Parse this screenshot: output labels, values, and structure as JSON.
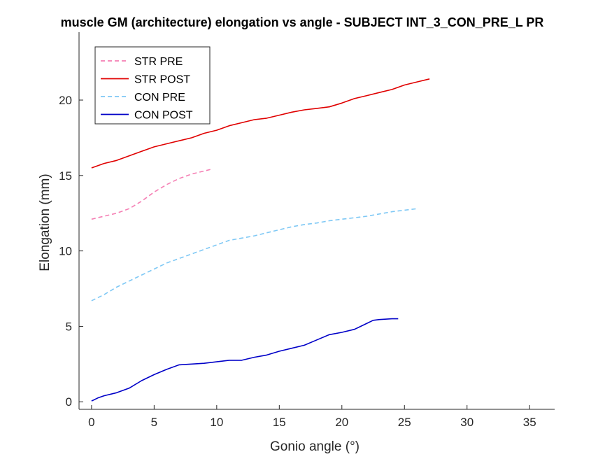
{
  "chart_data": {
    "type": "line",
    "title": "muscle GM (architecture) elongation vs angle - SUBJECT INT_3_CON_PRE_L PR",
    "xlabel": "Gonio angle (°)",
    "ylabel": "Elongation (mm)",
    "xlim": [
      -1,
      37
    ],
    "ylim": [
      -0.5,
      24.5
    ],
    "xticks": [
      0,
      5,
      10,
      15,
      20,
      25,
      30,
      35
    ],
    "yticks": [
      0,
      5,
      10,
      15,
      20
    ],
    "grid": false,
    "legend_position": "top-left",
    "series": [
      {
        "name": "STR PRE",
        "color": "#f57fb4",
        "style": "dashed",
        "x": [
          0,
          1,
          2,
          3,
          4,
          5,
          6,
          7,
          8,
          9,
          9.5
        ],
        "y": [
          12.1,
          12.3,
          12.5,
          12.8,
          13.3,
          13.9,
          14.4,
          14.8,
          15.1,
          15.3,
          15.4
        ]
      },
      {
        "name": "STR POST",
        "color": "#e00000",
        "style": "solid",
        "x": [
          0,
          1,
          2,
          3,
          4,
          5,
          6,
          7,
          8,
          9,
          10,
          11,
          12,
          13,
          14,
          15,
          16,
          17,
          18,
          19,
          20,
          21,
          22,
          23,
          24,
          25,
          26,
          27
        ],
        "y": [
          15.5,
          15.8,
          16.0,
          16.3,
          16.6,
          16.9,
          17.1,
          17.3,
          17.5,
          17.8,
          18.0,
          18.3,
          18.5,
          18.7,
          18.8,
          19.0,
          19.2,
          19.35,
          19.45,
          19.55,
          19.8,
          20.1,
          20.3,
          20.5,
          20.7,
          21.0,
          21.2,
          21.4
        ]
      },
      {
        "name": "CON PRE",
        "color": "#7ec8f5",
        "style": "dashed",
        "x": [
          0,
          1,
          2,
          3,
          4,
          5,
          6,
          7,
          8,
          9,
          10,
          11,
          12,
          13,
          14,
          15,
          16,
          17,
          18,
          19,
          20,
          21,
          22,
          23,
          24,
          25,
          26
        ],
        "y": [
          6.7,
          7.1,
          7.6,
          8.0,
          8.4,
          8.8,
          9.2,
          9.5,
          9.8,
          10.1,
          10.4,
          10.7,
          10.85,
          11.0,
          11.2,
          11.4,
          11.6,
          11.75,
          11.85,
          12.0,
          12.1,
          12.2,
          12.3,
          12.45,
          12.6,
          12.7,
          12.8
        ]
      },
      {
        "name": "CON POST",
        "color": "#0000c8",
        "style": "solid",
        "x": [
          0,
          0.5,
          1,
          2,
          3,
          4,
          5,
          6,
          7,
          8,
          9,
          10,
          11,
          12,
          13,
          14,
          15,
          16,
          17,
          18,
          19,
          20,
          21,
          22,
          22.5,
          23,
          24,
          24.5
        ],
        "y": [
          0.05,
          0.25,
          0.4,
          0.6,
          0.9,
          1.4,
          1.8,
          2.15,
          2.45,
          2.5,
          2.55,
          2.65,
          2.75,
          2.75,
          2.95,
          3.1,
          3.35,
          3.55,
          3.75,
          4.1,
          4.45,
          4.6,
          4.8,
          5.2,
          5.4,
          5.45,
          5.5,
          5.5
        ]
      }
    ]
  }
}
